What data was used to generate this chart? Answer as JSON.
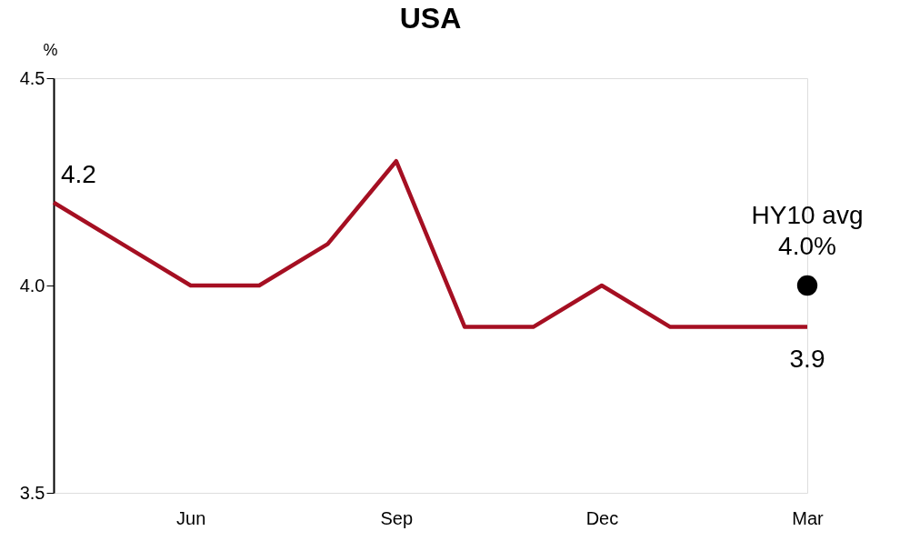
{
  "chart_data": {
    "type": "line",
    "title": "USA",
    "ylabel": "%",
    "categories": [
      null,
      null,
      "Jun",
      null,
      null,
      "Sep",
      null,
      null,
      "Dec",
      null,
      null,
      "Mar"
    ],
    "series": [
      {
        "type": "line",
        "color": "#a50f22",
        "values": [
          4.2,
          4.1,
          4.0,
          4.0,
          4.1,
          4.3,
          3.9,
          3.9,
          4.0,
          3.9,
          3.9,
          3.9
        ],
        "value_labels": [
          "4.2",
          null,
          null,
          null,
          null,
          null,
          null,
          null,
          null,
          null,
          null,
          "3.9"
        ],
        "marker": "none",
        "line_style": "solid"
      },
      {
        "type": "scatter",
        "color": "#000000",
        "x": [
          "Mar"
        ],
        "values": [
          4.0
        ],
        "marker": "circle"
      }
    ],
    "annotations": [
      {
        "text": "HY10 avg\n4.0%",
        "x": "Mar",
        "y": 4.0
      }
    ],
    "ylim": [
      3.5,
      4.5
    ],
    "yticks": [
      3.5,
      {
        "value": 4.0,
        "label": "4.0"
      },
      4.5
    ],
    "grid": false
  }
}
